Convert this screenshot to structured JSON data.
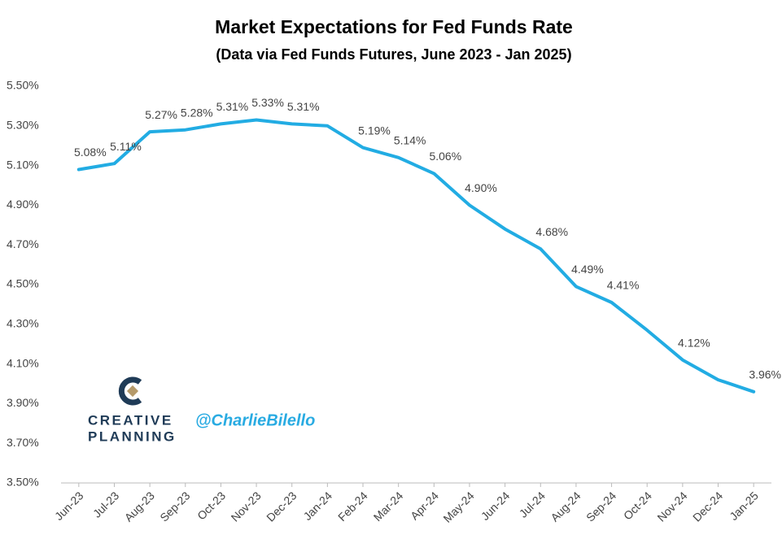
{
  "chart_data": {
    "type": "line",
    "title": "Market Expectations for Fed Funds Rate",
    "subtitle": "(Data via Fed Funds Futures, June 2023 - Jan 2025)",
    "categories": [
      "Jun-23",
      "Jul-23",
      "Aug-23",
      "Sep-23",
      "Oct-23",
      "Nov-23",
      "Dec-23",
      "Jan-24",
      "Feb-24",
      "Mar-24",
      "Apr-24",
      "May-24",
      "Jun-24",
      "Jul-24",
      "Aug-24",
      "Sep-24",
      "Oct-24",
      "Nov-24",
      "Dec-24",
      "Jan-25"
    ],
    "series": [
      {
        "name": "Fed Funds Rate",
        "color": "#22ace3",
        "values": [
          5.08,
          5.11,
          5.27,
          5.28,
          5.31,
          5.33,
          5.31,
          5.3,
          5.19,
          5.14,
          5.06,
          4.9,
          4.78,
          4.68,
          4.49,
          4.41,
          4.27,
          4.12,
          4.02,
          3.96
        ],
        "value_labels": [
          "5.08%",
          "5.11%",
          "5.27%",
          "5.28%",
          "5.31%",
          "5.33%",
          "5.31%",
          null,
          "5.19%",
          "5.14%",
          "5.06%",
          "4.90%",
          null,
          "4.68%",
          "4.49%",
          "4.41%",
          null,
          "4.12%",
          null,
          "3.96%"
        ]
      }
    ],
    "ylim": [
      3.5,
      5.5
    ],
    "yticks": [
      {
        "value": 3.5,
        "label": "3.50%"
      },
      {
        "value": 3.7,
        "label": "3.70%"
      },
      {
        "value": 3.9,
        "label": "3.90%"
      },
      {
        "value": 4.1,
        "label": "4.10%"
      },
      {
        "value": 4.3,
        "label": "4.30%"
      },
      {
        "value": 4.5,
        "label": "4.50%"
      },
      {
        "value": 4.7,
        "label": "4.70%"
      },
      {
        "value": 4.9,
        "label": "4.90%"
      },
      {
        "value": 5.1,
        "label": "5.10%"
      },
      {
        "value": 5.3,
        "label": "5.30%"
      },
      {
        "value": 5.5,
        "label": "5.50%"
      }
    ],
    "grid": false,
    "annotations": [
      "CREATIVE",
      "PLANNING",
      "@CharlieBilello"
    ]
  }
}
